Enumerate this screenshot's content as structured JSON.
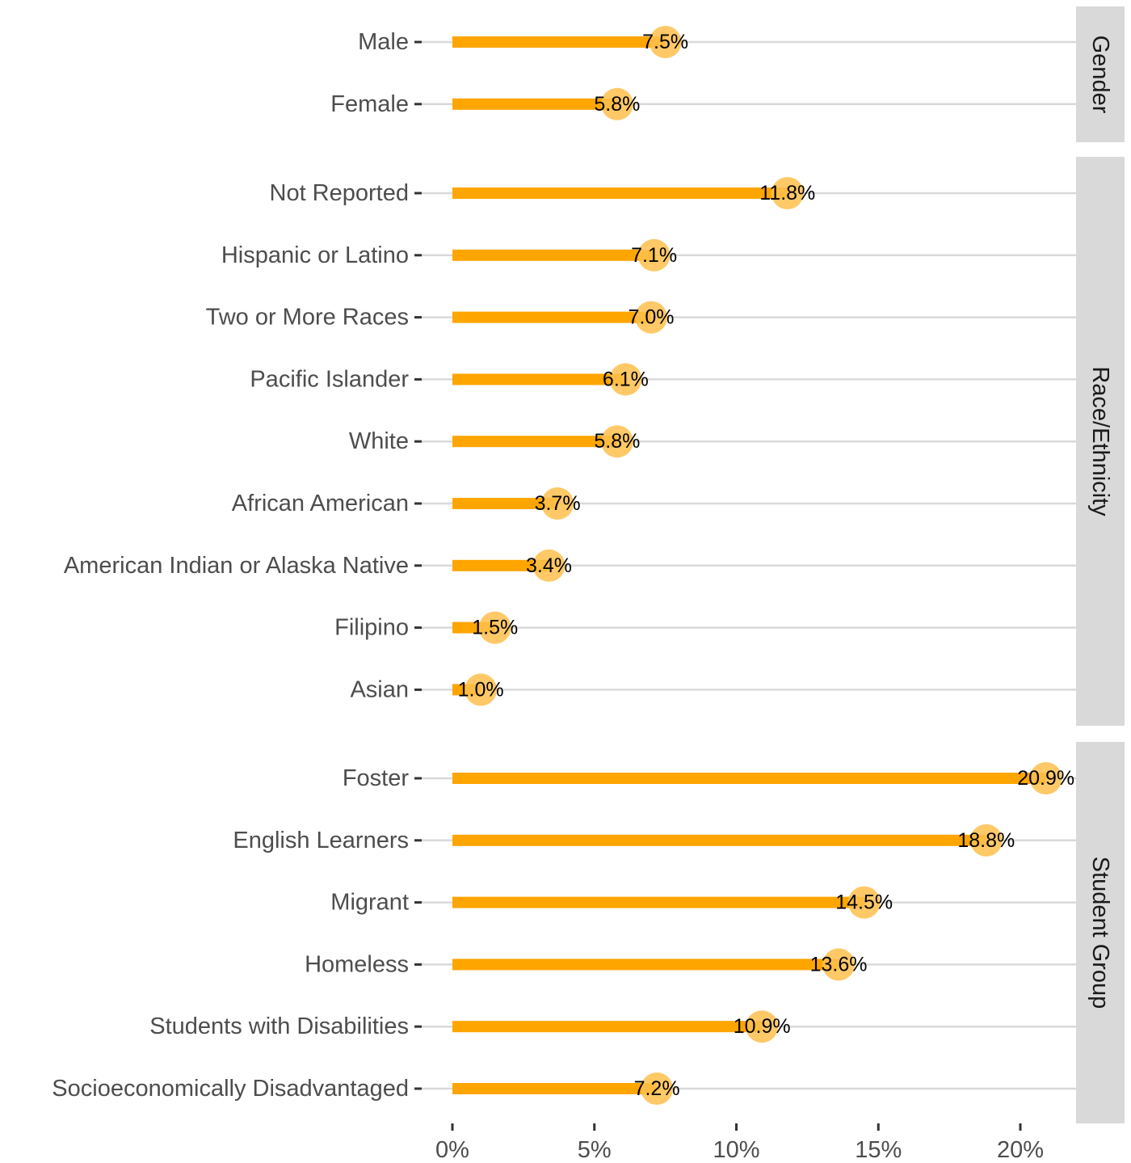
{
  "chart_data": {
    "type": "bar",
    "orientation": "horizontal",
    "style": "lollipop",
    "xlim": [
      0,
      22
    ],
    "x_ticks": [
      0,
      5,
      10,
      15,
      20
    ],
    "x_tick_labels": [
      "0%",
      "5%",
      "10%",
      "15%",
      "20%"
    ],
    "grid": true,
    "colors": {
      "bar": "#FFA500",
      "point": "#FFC04D",
      "strip": "#D9D9D9",
      "grid": "#D9D9D9"
    },
    "panels": [
      {
        "name": "Gender",
        "categories": [
          "Male",
          "Female"
        ],
        "values": [
          7.5,
          5.8
        ],
        "labels": [
          "7.5%",
          "5.8%"
        ]
      },
      {
        "name": "Race/Ethnicity",
        "categories": [
          "Not Reported",
          "Hispanic or Latino",
          "Two or More Races",
          "Pacific Islander",
          "White",
          "African American",
          "American Indian or Alaska Native",
          "Filipino",
          "Asian"
        ],
        "values": [
          11.8,
          7.1,
          7.0,
          6.1,
          5.8,
          3.7,
          3.4,
          1.5,
          1.0
        ],
        "labels": [
          "11.8%",
          "7.1%",
          "7.0%",
          "6.1%",
          "5.8%",
          "3.7%",
          "3.4%",
          "1.5%",
          "1.0%"
        ]
      },
      {
        "name": "Student Group",
        "categories": [
          "Foster",
          "English Learners",
          "Migrant",
          "Homeless",
          "Students with Disabilities",
          "Socioeconomically Disadvantaged"
        ],
        "values": [
          20.9,
          18.8,
          14.5,
          13.6,
          10.9,
          7.2
        ],
        "labels": [
          "20.9%",
          "18.8%",
          "14.5%",
          "13.6%",
          "10.9%",
          "7.2%"
        ]
      }
    ]
  }
}
